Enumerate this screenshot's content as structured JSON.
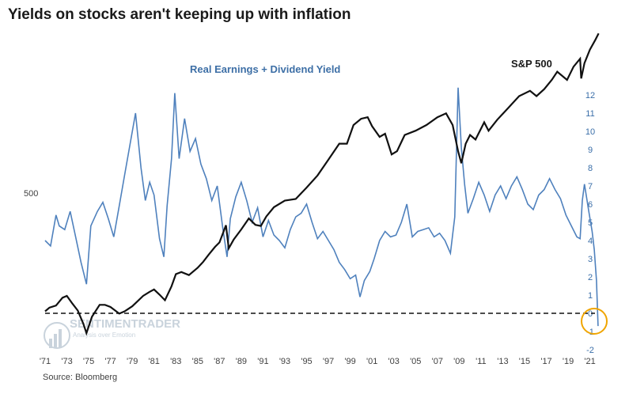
{
  "title": "Yields on stocks aren't keeping up with inflation",
  "source": "Source: Bloomberg",
  "watermark": {
    "name": "SENTIMENTRADER",
    "tagline": "Analysis over Emotion"
  },
  "colors": {
    "earnings_series": "#4f81bd",
    "sp500_series": "#111111",
    "highlight_circle": "#f0a500"
  },
  "chart_data": {
    "type": "line",
    "title": "Yields on stocks aren't keeping up with inflation",
    "x_tick_labels": [
      "'71",
      "'73",
      "'75",
      "'77",
      "'79",
      "'81",
      "'83",
      "'85",
      "'87",
      "'89",
      "'91",
      "'93",
      "'95",
      "'97",
      "'99",
      "'01",
      "'03",
      "'05",
      "'07",
      "'09",
      "'11",
      "'13",
      "'15",
      "'17",
      "'19",
      "'21"
    ],
    "x_ticks": [
      1971,
      1973,
      1975,
      1977,
      1979,
      1981,
      1983,
      1985,
      1987,
      1989,
      1991,
      1993,
      1995,
      1997,
      1999,
      2001,
      2003,
      2005,
      2007,
      2009,
      2011,
      2013,
      2015,
      2017,
      2019,
      2021
    ],
    "xlim": [
      1971,
      2021.9
    ],
    "right_axis": {
      "ticks": [
        12,
        11,
        10,
        9,
        8,
        7,
        6,
        5,
        4,
        3,
        2,
        1,
        0,
        -1,
        -2
      ],
      "ylim": [
        -2,
        12.5
      ]
    },
    "left_axis": {
      "labels": [
        "500"
      ],
      "scale": "log"
    },
    "reference_line": {
      "y": 0,
      "style": "dashed"
    },
    "series": [
      {
        "name": "Real Earnings + Dividend Yield",
        "axis": "right",
        "x": [
          1971.0,
          1971.5,
          1972.0,
          1972.3,
          1972.8,
          1973.3,
          1973.8,
          1974.3,
          1974.8,
          1975.2,
          1975.8,
          1976.3,
          1976.8,
          1977.3,
          1977.8,
          1978.3,
          1978.8,
          1979.3,
          1979.8,
          1980.2,
          1980.6,
          1981.0,
          1981.5,
          1981.9,
          1982.2,
          1982.6,
          1982.9,
          1983.3,
          1983.8,
          1984.3,
          1984.8,
          1985.3,
          1985.8,
          1986.3,
          1986.8,
          1987.3,
          1987.7,
          1988.0,
          1988.5,
          1989.0,
          1989.5,
          1990.0,
          1990.5,
          1991.0,
          1991.5,
          1992.0,
          1992.5,
          1993.0,
          1993.5,
          1994.0,
          1994.5,
          1995.0,
          1995.5,
          1996.0,
          1996.5,
          1997.0,
          1997.5,
          1998.0,
          1998.5,
          1999.0,
          1999.5,
          1999.9,
          2000.3,
          2000.8,
          2001.2,
          2001.7,
          2002.2,
          2002.7,
          2003.2,
          2003.7,
          2004.2,
          2004.7,
          2005.2,
          2005.7,
          2006.2,
          2006.7,
          2007.2,
          2007.7,
          2008.2,
          2008.6,
          2008.9,
          2009.2,
          2009.5,
          2009.8,
          2010.3,
          2010.8,
          2011.3,
          2011.8,
          2012.3,
          2012.8,
          2013.3,
          2013.8,
          2014.3,
          2014.8,
          2015.3,
          2015.8,
          2016.3,
          2016.8,
          2017.3,
          2017.8,
          2018.3,
          2018.8,
          2019.3,
          2019.8,
          2020.1,
          2020.3,
          2020.5,
          2020.9,
          2021.2,
          2021.4,
          2021.6,
          2021.75
        ],
        "values": [
          4.0,
          3.7,
          5.4,
          4.8,
          4.6,
          5.6,
          4.2,
          2.8,
          1.6,
          4.8,
          5.6,
          6.1,
          5.2,
          4.2,
          5.9,
          7.6,
          9.3,
          11.0,
          8.0,
          6.2,
          7.2,
          6.5,
          4.1,
          3.1,
          5.9,
          8.5,
          12.1,
          8.5,
          10.7,
          8.9,
          9.6,
          8.2,
          7.4,
          6.2,
          7.0,
          4.7,
          3.1,
          5.2,
          6.4,
          7.2,
          6.2,
          5.0,
          5.8,
          4.2,
          5.1,
          4.3,
          4.0,
          3.6,
          4.6,
          5.3,
          5.5,
          6.0,
          5.0,
          4.1,
          4.5,
          4.0,
          3.5,
          2.8,
          2.4,
          1.9,
          2.1,
          0.9,
          1.8,
          2.3,
          3.0,
          4.0,
          4.5,
          4.2,
          4.3,
          5.0,
          6.0,
          4.2,
          4.5,
          4.6,
          4.7,
          4.2,
          4.4,
          4.0,
          3.3,
          5.3,
          12.4,
          9.1,
          7.1,
          5.5,
          6.3,
          7.2,
          6.5,
          5.6,
          6.5,
          7.0,
          6.3,
          7.0,
          7.5,
          6.8,
          6.0,
          5.7,
          6.5,
          6.8,
          7.4,
          6.8,
          6.3,
          5.4,
          4.8,
          4.2,
          4.1,
          6.2,
          7.1,
          5.6,
          4.5,
          3.5,
          1.8,
          -0.7
        ]
      },
      {
        "name": "S&P 500",
        "axis": "left",
        "x": [
          1971.0,
          1971.4,
          1972.0,
          1972.6,
          1973.0,
          1973.5,
          1974.0,
          1974.5,
          1974.8,
          1975.3,
          1976.0,
          1976.5,
          1977.0,
          1977.8,
          1978.3,
          1979.0,
          1980.0,
          1980.6,
          1981.0,
          1981.5,
          1982.0,
          1982.6,
          1983.0,
          1983.5,
          1984.2,
          1985.0,
          1985.5,
          1986.0,
          1986.6,
          1987.0,
          1987.6,
          1987.85,
          1988.3,
          1989.0,
          1989.7,
          1990.3,
          1990.8,
          1991.3,
          1992.0,
          1993.0,
          1994.0,
          1995.0,
          1996.0,
          1997.0,
          1998.0,
          1998.7,
          1999.3,
          2000.0,
          2000.6,
          2001.0,
          2001.7,
          2002.2,
          2002.8,
          2003.3,
          2004.0,
          2005.0,
          2006.0,
          2007.0,
          2007.8,
          2008.4,
          2008.9,
          2009.2,
          2009.6,
          2010.0,
          2010.5,
          2011.3,
          2011.7,
          2012.5,
          2013.5,
          2014.5,
          2015.5,
          2016.1,
          2016.8,
          2017.5,
          2018.0,
          2018.9,
          2019.5,
          2020.1,
          2020.2,
          2020.5,
          2021.0,
          2021.5,
          2021.8
        ],
        "values": [
          95,
          100,
          103,
          115,
          118,
          106,
          96,
          80,
          70,
          88,
          104,
          104,
          101,
          92,
          95,
          102,
          118,
          125,
          129,
          120,
          111,
          135,
          160,
          165,
          158,
          175,
          190,
          210,
          235,
          250,
          318,
          230,
          260,
          300,
          350,
          320,
          315,
          360,
          410,
          450,
          460,
          540,
          640,
          800,
          1000,
          1000,
          1300,
          1420,
          1450,
          1280,
          1100,
          1150,
          860,
          900,
          1130,
          1200,
          1300,
          1450,
          1530,
          1300,
          900,
          760,
          1000,
          1130,
          1060,
          1350,
          1200,
          1400,
          1650,
          1950,
          2100,
          1950,
          2150,
          2450,
          2750,
          2450,
          2950,
          3300,
          2500,
          3100,
          3750,
          4300,
          4700
        ]
      }
    ]
  }
}
